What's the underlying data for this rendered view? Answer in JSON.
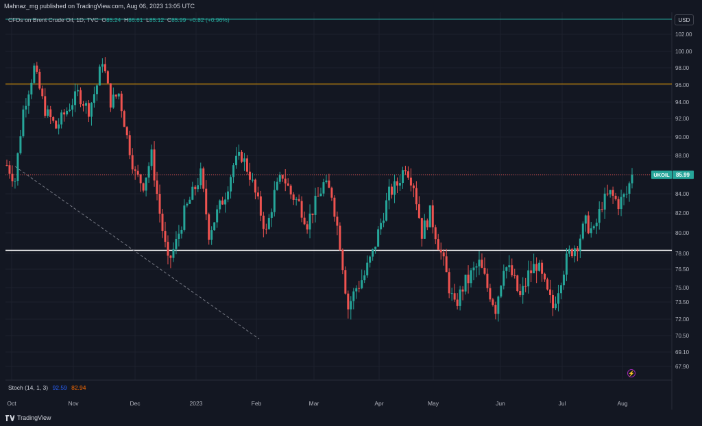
{
  "header": {
    "text": "Mahnaz_mg published on TradingView.com, Aug 06, 2023 13:05 UTC"
  },
  "legend": {
    "symbol": "CFDs on Brent Crude Oil, 1D, TVC",
    "open_label": "O",
    "open": "85.24",
    "high_label": "H",
    "high": "86.61",
    "low_label": "L",
    "low": "85.12",
    "close_label": "C",
    "close": "85.99",
    "change": "+0.82 (+0.96%)"
  },
  "currency_button": "USD",
  "stoch": {
    "label": "Stoch (14, 1, 3)",
    "k": "92.59",
    "d": "82.94"
  },
  "footer": {
    "brand": "TradingView"
  },
  "price_tag": {
    "symbol": "UKOIL",
    "value": "85.99"
  },
  "colors": {
    "background": "#131722",
    "up": "#26a69a",
    "down": "#ef5350",
    "resistance": "#f7a600",
    "support": "#ffffff",
    "current_price": "#ef5350",
    "top_line": "#26a69a"
  },
  "chart_data": {
    "type": "candlestick",
    "y_ticks": [
      67.9,
      69.1,
      70.5,
      72.0,
      73.5,
      75.0,
      76.5,
      78.0,
      80.0,
      82.0,
      84.0,
      86.0,
      88.0,
      90.0,
      92.0,
      94.0,
      96.0,
      98.0,
      100.0,
      102.0
    ],
    "y_tick_labels": [
      "67.90",
      "69.10",
      "70.50",
      "72.00",
      "73.50",
      "75.00",
      "76.50",
      "78.00",
      "80.00",
      "82.00",
      "84.00",
      "86.00",
      "88.00",
      "90.00",
      "92.00",
      "94.00",
      "96.00",
      "98.00",
      "100.00",
      "102.00"
    ],
    "x_labels": [
      "Oct",
      "Nov",
      "Dec",
      "2023",
      "Feb",
      "Mar",
      "Apr",
      "May",
      "Jun",
      "Jul",
      "Aug"
    ],
    "horizontal_lines": [
      {
        "value": 96.1,
        "color": "#f7a600"
      },
      {
        "value": 78.3,
        "color": "#ffffff"
      },
      {
        "value": 85.99,
        "color": "#ef5350",
        "style": "dotted"
      },
      {
        "value": 104.0,
        "color": "#26a69a"
      }
    ],
    "trendline": {
      "from": {
        "date": "Sep 30",
        "price": 87.0
      },
      "to": {
        "date": "Feb 22",
        "price": 70.0
      },
      "style": "dashed"
    },
    "waypoints": [
      [
        0,
        87
      ],
      [
        3,
        85.5
      ],
      [
        6,
        93
      ],
      [
        10,
        98
      ],
      [
        14,
        93
      ],
      [
        18,
        91
      ],
      [
        22,
        93
      ],
      [
        26,
        95
      ],
      [
        30,
        93
      ],
      [
        33,
        96
      ],
      [
        35,
        99
      ],
      [
        38,
        94
      ],
      [
        41,
        95
      ],
      [
        44,
        90
      ],
      [
        47,
        86
      ],
      [
        50,
        85
      ],
      [
        53,
        88
      ],
      [
        56,
        82
      ],
      [
        59,
        77
      ],
      [
        62,
        79
      ],
      [
        65,
        82
      ],
      [
        68,
        84
      ],
      [
        71,
        86
      ],
      [
        74,
        80
      ],
      [
        77,
        82
      ],
      [
        80,
        84
      ],
      [
        83,
        87
      ],
      [
        86,
        88
      ],
      [
        89,
        86
      ],
      [
        92,
        83
      ],
      [
        95,
        80
      ],
      [
        98,
        84
      ],
      [
        101,
        86
      ],
      [
        104,
        84
      ],
      [
        107,
        83
      ],
      [
        110,
        81
      ],
      [
        113,
        83
      ],
      [
        116,
        85
      ],
      [
        119,
        84
      ],
      [
        122,
        79
      ],
      [
        125,
        73
      ],
      [
        128,
        75
      ],
      [
        131,
        76
      ],
      [
        134,
        78
      ],
      [
        137,
        81
      ],
      [
        140,
        84
      ],
      [
        143,
        85
      ],
      [
        146,
        87
      ],
      [
        149,
        85
      ],
      [
        152,
        80
      ],
      [
        155,
        82
      ],
      [
        158,
        79
      ],
      [
        161,
        76
      ],
      [
        164,
        73
      ],
      [
        167,
        75
      ],
      [
        170,
        76
      ],
      [
        173,
        77
      ],
      [
        176,
        75
      ],
      [
        179,
        73
      ],
      [
        182,
        77
      ],
      [
        185,
        76
      ],
      [
        188,
        74
      ],
      [
        191,
        76
      ],
      [
        194,
        77
      ],
      [
        197,
        75
      ],
      [
        200,
        73
      ],
      [
        203,
        76
      ],
      [
        206,
        78
      ],
      [
        209,
        79
      ],
      [
        212,
        81
      ],
      [
        215,
        80
      ],
      [
        218,
        83
      ],
      [
        221,
        84
      ],
      [
        224,
        83
      ],
      [
        227,
        84
      ],
      [
        229,
        85.99
      ]
    ]
  }
}
